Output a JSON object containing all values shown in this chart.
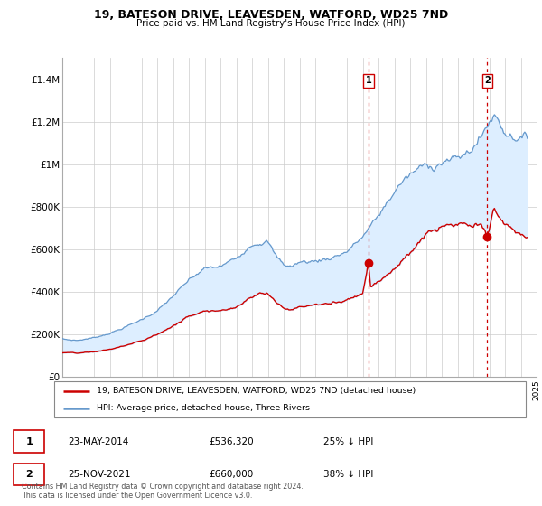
{
  "title": "19, BATESON DRIVE, LEAVESDEN, WATFORD, WD25 7ND",
  "subtitle": "Price paid vs. HM Land Registry's House Price Index (HPI)",
  "ylim": [
    0,
    1500000
  ],
  "yticks": [
    0,
    200000,
    400000,
    600000,
    800000,
    1000000,
    1200000,
    1400000
  ],
  "ytick_labels": [
    "£0",
    "£200K",
    "£400K",
    "£600K",
    "£800K",
    "£1M",
    "£1.2M",
    "£1.4M"
  ],
  "sale1_date": "23-MAY-2014",
  "sale1_price": 536320,
  "sale1_pct": "25% ↓ HPI",
  "sale2_date": "25-NOV-2021",
  "sale2_price": 660000,
  "sale2_pct": "38% ↓ HPI",
  "hpi_color": "#6699cc",
  "hpi_fill_color": "#ddeeff",
  "price_color": "#cc0000",
  "vline_color": "#cc0000",
  "grid_color": "#cccccc",
  "legend_label_price": "19, BATESON DRIVE, LEAVESDEN, WATFORD, WD25 7ND (detached house)",
  "legend_label_hpi": "HPI: Average price, detached house, Three Rivers",
  "footnote": "Contains HM Land Registry data © Crown copyright and database right 2024.\nThis data is licensed under the Open Government Licence v3.0.",
  "sale1_year": 2014.375,
  "sale2_year": 2021.875,
  "xmin": 1995,
  "xmax": 2025
}
